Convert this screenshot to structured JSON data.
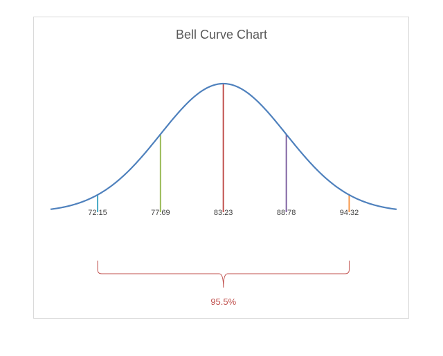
{
  "chart_data": {
    "type": "line",
    "title": "Bell Curve Chart",
    "mean": 83.23,
    "std_dev": 5.54,
    "x_range": [
      68.0,
      98.5
    ],
    "markers": [
      {
        "value": 72.15,
        "label": "72.15",
        "color": "#4bacc6"
      },
      {
        "value": 77.69,
        "label": "77.69",
        "color": "#9bbb59"
      },
      {
        "value": 83.23,
        "label": "83.23",
        "color": "#c0504d"
      },
      {
        "value": 88.78,
        "label": "88.78",
        "color": "#8064a2"
      },
      {
        "value": 94.32,
        "label": "94.32",
        "color": "#f79646"
      }
    ],
    "bracket": {
      "from": 72.15,
      "to": 94.32,
      "label": "95.5%",
      "color": "#c0504d"
    },
    "curve_color": "#4f81bd"
  }
}
